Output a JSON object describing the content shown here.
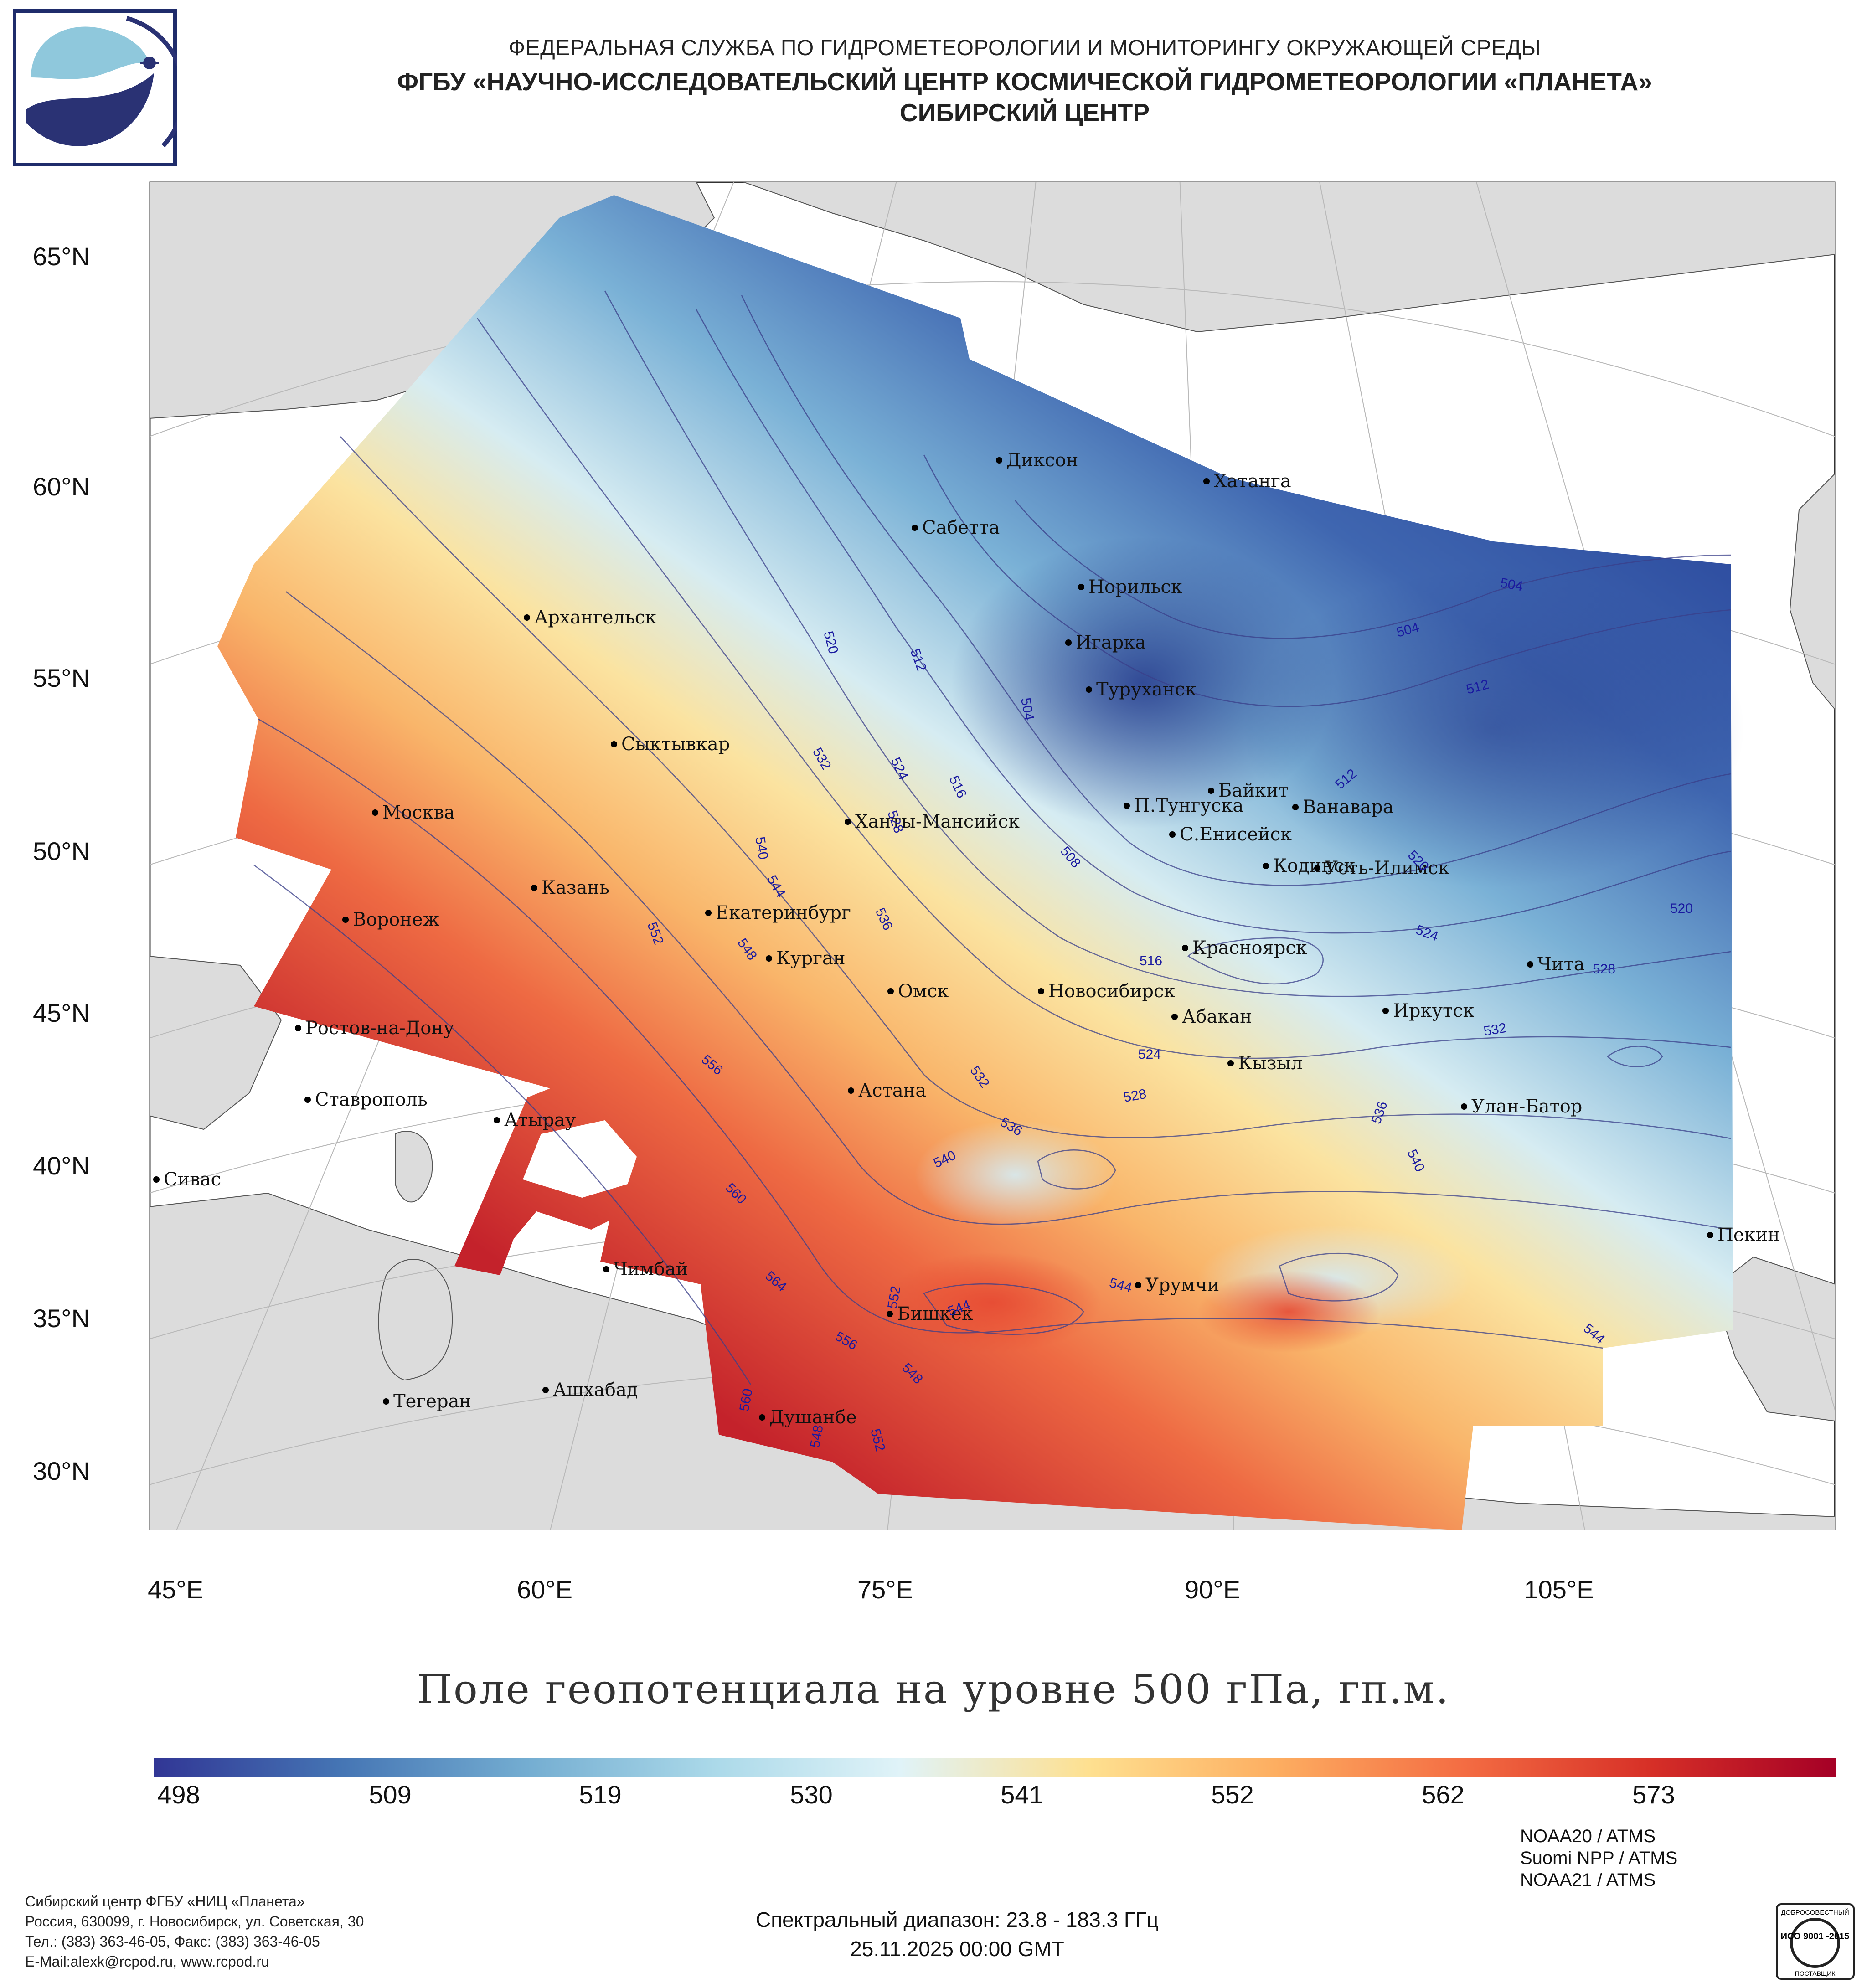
{
  "header": {
    "agency": "ФЕДЕРАЛЬНАЯ СЛУЖБА ПО ГИДРОМЕТЕОРОЛОГИИ И МОНИТОРИНГУ ОКРУЖАЮЩЕЙ СРЕДЫ",
    "institution": "ФГБУ «НАУЧНО-ИССЛЕДОВАТЕЛЬСКИЙ ЦЕНТР КОСМИЧЕСКОЙ ГИДРОМЕТЕОРОЛОГИИ «ПЛАНЕТА»",
    "center": "СИБИРСКИЙ ЦЕНТР"
  },
  "map": {
    "title": "Поле геопотенциала на уровне 500 гПа, гп.м.",
    "lat_ticks": [
      "65°N",
      "60°N",
      "55°N",
      "50°N",
      "45°N",
      "40°N",
      "35°N",
      "30°N"
    ],
    "lon_ticks": [
      "45°E",
      "60°E",
      "75°E",
      "90°E",
      "105°E"
    ],
    "cities": [
      {
        "name": "Архангельск"
      },
      {
        "name": "Сыктывкар"
      },
      {
        "name": "Москва"
      },
      {
        "name": "Казань"
      },
      {
        "name": "Воронеж"
      },
      {
        "name": "Ростов-на-Дону"
      },
      {
        "name": "Ставрополь"
      },
      {
        "name": "Сивас"
      },
      {
        "name": "Атырау"
      },
      {
        "name": "Чимбай"
      },
      {
        "name": "Ашхабад"
      },
      {
        "name": "Тегеран"
      },
      {
        "name": "Душанбе"
      },
      {
        "name": "Бишкек"
      },
      {
        "name": "Екатеринбург"
      },
      {
        "name": "Курган"
      },
      {
        "name": "Омск"
      },
      {
        "name": "Астана"
      },
      {
        "name": "Ханты-Мансийск"
      },
      {
        "name": "Диксон"
      },
      {
        "name": "Сабетта"
      },
      {
        "name": "Норильск"
      },
      {
        "name": "Игарка"
      },
      {
        "name": "Туруханск"
      },
      {
        "name": "Хатанга"
      },
      {
        "name": "Байкит"
      },
      {
        "name": "П.Тунгуска"
      },
      {
        "name": "Ванавара"
      },
      {
        "name": "С.Енисейск"
      },
      {
        "name": "Кодинск"
      },
      {
        "name": "Усть-Илимск"
      },
      {
        "name": "Красноярск"
      },
      {
        "name": "Новосибирск"
      },
      {
        "name": "Абакан"
      },
      {
        "name": "Кызыл"
      },
      {
        "name": "Иркутск"
      },
      {
        "name": "Чита"
      },
      {
        "name": "Улан-Батор"
      },
      {
        "name": "Урумчи"
      },
      {
        "name": "Пекин"
      }
    ],
    "contour_labels": [
      "520",
      "512",
      "504",
      "532",
      "524",
      "516",
      "528",
      "508",
      "540",
      "544",
      "552",
      "548",
      "536",
      "556",
      "560",
      "564",
      "504",
      "504",
      "512",
      "512",
      "520",
      "520",
      "524",
      "528",
      "532",
      "536",
      "540",
      "544",
      "516",
      "524",
      "528",
      "532",
      "536",
      "540",
      "544",
      "552",
      "556",
      "548",
      "560",
      "548",
      "552",
      "544"
    ]
  },
  "colorbar": {
    "labels": [
      "498",
      "509",
      "519",
      "530",
      "541",
      "552",
      "562",
      "573"
    ],
    "colors": [
      "#313695",
      "#4575b4",
      "#74add1",
      "#abd9e9",
      "#e0f3f8",
      "#fee090",
      "#fdae61",
      "#f46d43",
      "#d73027",
      "#a50026"
    ]
  },
  "footer": {
    "org_lines": [
      "Сибирский центр ФГБУ «НИЦ «Планета»",
      "Россия, 630099, г. Новосибирск, ул. Советская, 30",
      "Тел.: (383) 363-46-05, Факс: (383) 363-46-05",
      "E-Mail:alexk@rcpod.ru, www.rcpod.ru"
    ],
    "spectral_range": "Спектральный диапазон: 23.8 - 183.3 ГГц",
    "datetime": "25.11.2025 00:00 GMT",
    "satellites": [
      "NOAA20 / ATMS",
      "Suomi NPP / ATMS",
      "NOAA21 / ATMS"
    ],
    "iso_badge": {
      "top": "ДОБРОСОВЕСТНЫЙ",
      "middle": "ИСО 9001 -2015",
      "bottom": "ПОСТАВЩИК"
    }
  }
}
